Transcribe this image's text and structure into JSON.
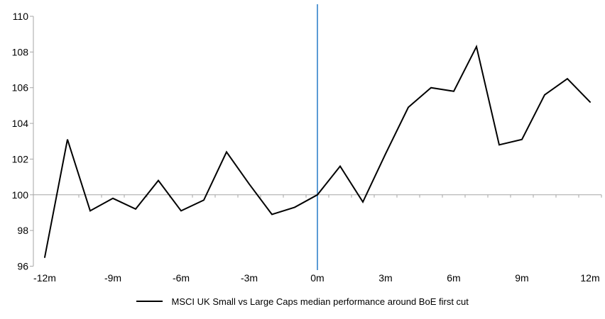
{
  "chart_data": {
    "type": "line",
    "title": "",
    "xlabel": "",
    "ylabel": "",
    "x": [
      -12,
      -11,
      -10,
      -9,
      -8,
      -7,
      -6,
      -5,
      -4,
      -3,
      -2,
      -1,
      0,
      1,
      2,
      3,
      4,
      5,
      6,
      7,
      8,
      9,
      10,
      11,
      12
    ],
    "x_tick_months": [
      -12,
      -9,
      -6,
      -3,
      0,
      3,
      6,
      9,
      12
    ],
    "x_tick_labels": [
      "-12m",
      "-9m",
      "-6m",
      "-3m",
      "0m",
      "3m",
      "6m",
      "9m",
      "12m"
    ],
    "y_ticks": [
      96,
      98,
      100,
      102,
      104,
      106,
      108,
      110
    ],
    "ylim": [
      96,
      110
    ],
    "baseline": 100,
    "series": [
      {
        "name": "MSCI UK Small vs Large Caps median performance around BoE first cut",
        "color": "#000000",
        "values": [
          96.5,
          103.1,
          99.1,
          99.8,
          99.2,
          100.8,
          99.1,
          99.7,
          102.4,
          100.6,
          98.9,
          99.3,
          100.0,
          101.6,
          99.6,
          102.3,
          104.9,
          106.0,
          105.8,
          108.3,
          102.8,
          103.1,
          105.6,
          106.5,
          105.2
        ]
      }
    ],
    "event_line": {
      "x": 0,
      "color": "#5b9bd5"
    },
    "axis_color": "#a6a6a6",
    "grid": "off",
    "legend_position": "bottom"
  }
}
